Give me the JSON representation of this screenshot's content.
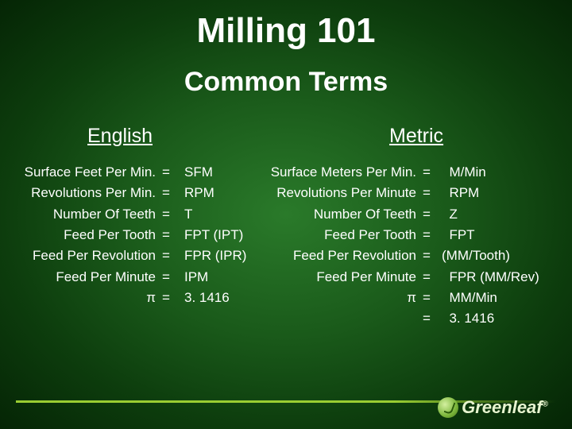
{
  "title": "Milling 101",
  "subtitle": "Common Terms",
  "headers": {
    "english": "English",
    "metric": "Metric"
  },
  "english": {
    "terms": [
      "Surface Feet Per Min.",
      "Revolutions Per Min.",
      "Number Of Teeth",
      "Feed Per Tooth",
      "Feed Per Revolution",
      "Feed Per Minute",
      "π"
    ],
    "eq": [
      "=",
      "=",
      "=",
      "=",
      "=",
      "=",
      "="
    ],
    "abbr": [
      "SFM",
      "RPM",
      "T",
      "FPT (IPT)",
      "FPR (IPR)",
      "IPM",
      "3. 1416"
    ]
  },
  "metric": {
    "terms": [
      "Surface Meters Per Min.",
      "Revolutions Per Minute",
      "Number Of Teeth",
      "Feed Per Tooth",
      "Feed Per Revolution",
      "Feed Per Minute",
      "π",
      ""
    ],
    "eq": [
      "=",
      "=",
      "=",
      "=",
      "=",
      "=",
      "=",
      "="
    ],
    "abbr": [
      "  M/Min",
      "  RPM",
      "  Z",
      "  FPT",
      "(MM/Tooth)",
      "  FPR (MM/Rev)",
      "  MM/Min",
      "  3. 1416"
    ]
  },
  "logo": {
    "text": "Greenleaf",
    "reg": "®"
  },
  "style": {
    "bg_gradient": [
      "#2a7a2a",
      "#1a5a1a",
      "#0d3d0d",
      "#052505"
    ],
    "text_color": "#ffffff",
    "title_fontsize": 44,
    "subtitle_fontsize": 34,
    "header_fontsize": 25,
    "body_fontsize": 17,
    "bar_color": "#9acd32",
    "logo_text_color": "#e8f5d0"
  }
}
